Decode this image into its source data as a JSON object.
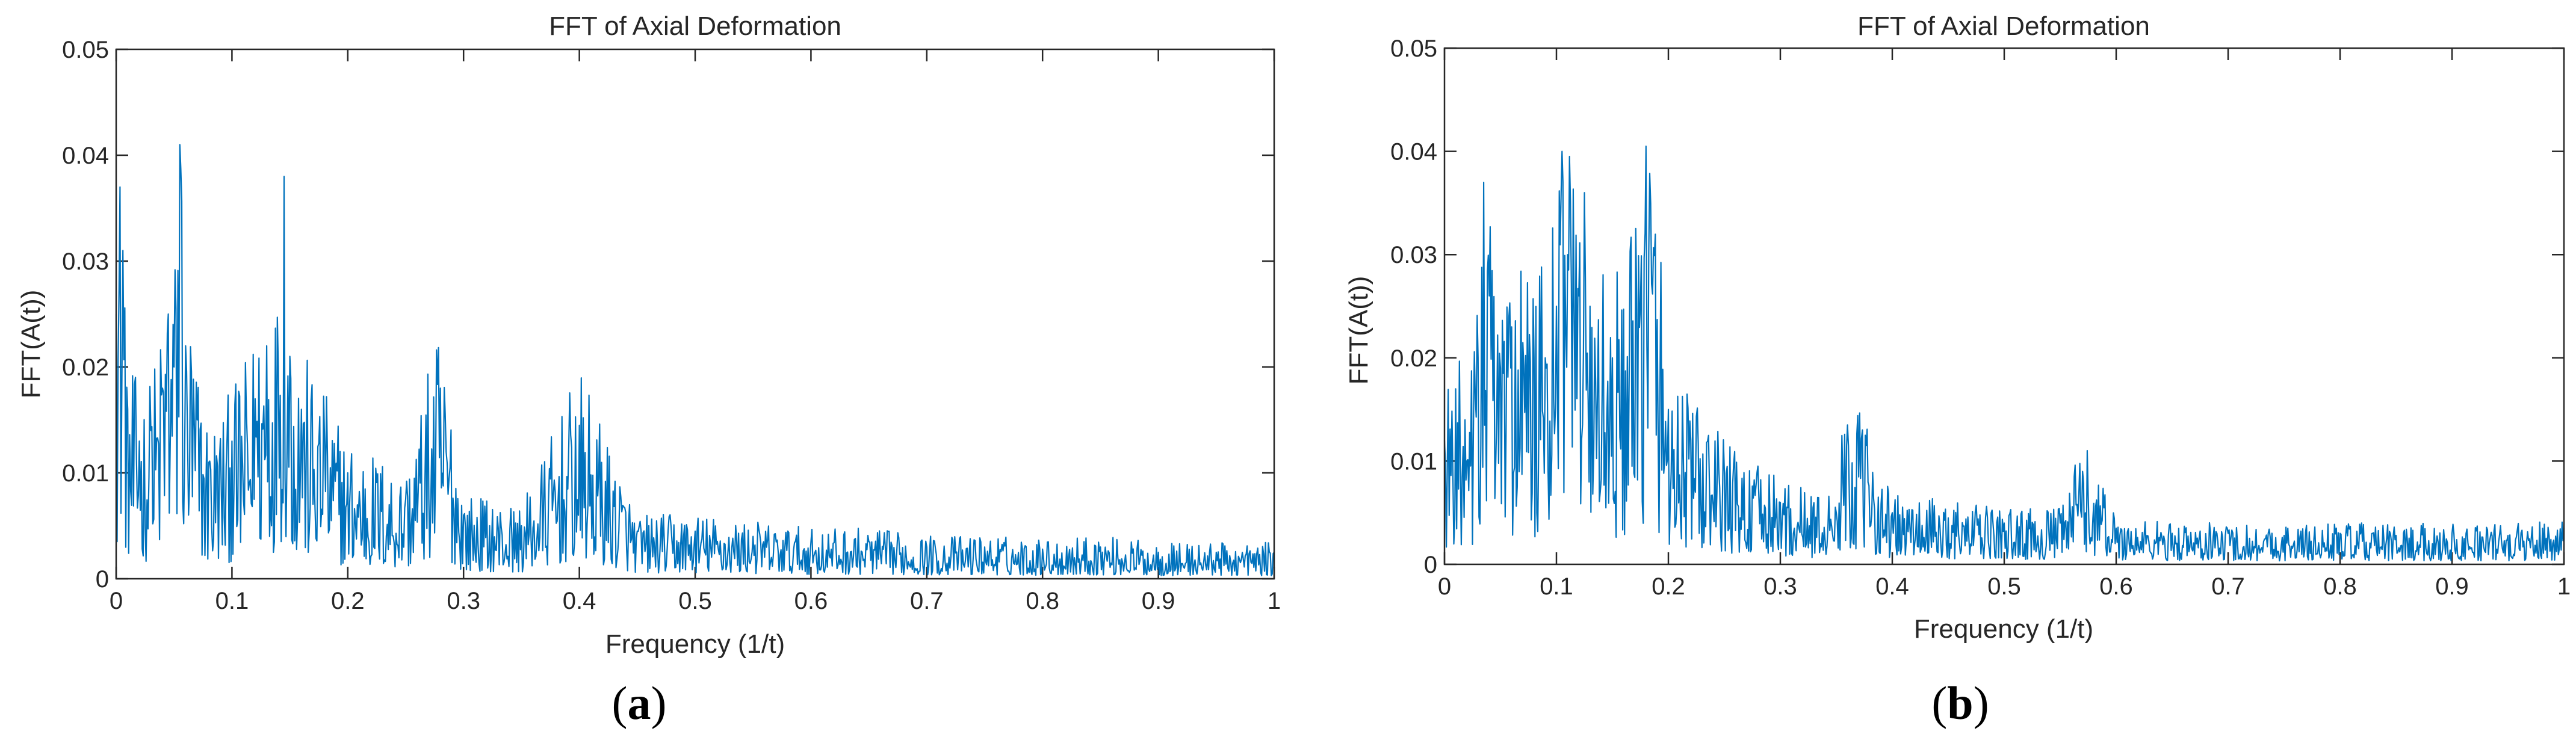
{
  "colors": {
    "series": "#0072BD",
    "axes": "#262626"
  },
  "chart_data": [
    {
      "type": "line",
      "panel": "(a)",
      "panel_letter": "a",
      "title": "FFT of Axial Deformation",
      "xlabel": "Frequency (1/t)",
      "ylabel": "FFT(A(t))",
      "xlim": [
        0,
        1
      ],
      "ylim": [
        0,
        0.05
      ],
      "xticks": [
        0,
        0.1,
        0.2,
        0.3,
        0.4,
        0.5,
        0.6,
        0.7,
        0.8,
        0.9,
        1
      ],
      "xtick_labels": [
        "0",
        "0.1",
        "0.2",
        "0.3",
        "0.4",
        "0.5",
        "0.6",
        "0.7",
        "0.8",
        "0.9",
        "1"
      ],
      "yticks": [
        0,
        0.01,
        0.02,
        0.03,
        0.04,
        0.05
      ],
      "ytick_labels": [
        "0",
        "0.01",
        "0.02",
        "0.03",
        "0.04",
        "0.05"
      ],
      "grid": false,
      "series": [
        {
          "x": [
            0,
            0.003,
            0.006,
            0.01,
            0.02,
            0.03,
            0.04,
            0.045,
            0.05,
            0.055,
            0.06,
            0.07,
            0.08,
            0.1,
            0.12,
            0.13,
            0.14,
            0.145,
            0.15,
            0.16,
            0.18,
            0.2,
            0.25,
            0.28,
            0.3,
            0.35,
            0.4,
            0.45,
            0.5,
            0.55,
            0.6,
            0.65,
            0.7,
            0.75,
            0.8,
            0.85,
            0.9,
            0.95,
            1
          ],
          "y": [
            0.025,
            0.037,
            0.031,
            0.016,
            0.013,
            0.014,
            0.018,
            0.025,
            0.02,
            0.041,
            0.022,
            0.015,
            0.011,
            0.013,
            0.017,
            0.022,
            0.02,
            0.038,
            0.021,
            0.016,
            0.013,
            0.01,
            0.0075,
            0.018,
            0.006,
            0.005,
            0.0145,
            0.0045,
            0.0045,
            0.004,
            0.0035,
            0.0035,
            0.003,
            0.003,
            0.0028,
            0.003,
            0.0025,
            0.0025,
            0.0025
          ]
        }
      ]
    },
    {
      "type": "line",
      "panel": "(b)",
      "panel_letter": "b",
      "title": "FFT of Axial Deformation",
      "xlabel": "Frequency (1/t)",
      "ylabel": "FFT(A(t))",
      "xlim": [
        0,
        1
      ],
      "ylim": [
        0,
        0.05
      ],
      "xticks": [
        0,
        0.1,
        0.2,
        0.3,
        0.4,
        0.5,
        0.6,
        0.7,
        0.8,
        0.9,
        1
      ],
      "xtick_labels": [
        "0",
        "0.1",
        "0.2",
        "0.3",
        "0.4",
        "0.5",
        "0.6",
        "0.7",
        "0.8",
        "0.9",
        "1"
      ],
      "yticks": [
        0,
        0.01,
        0.02,
        0.03,
        0.04,
        0.05
      ],
      "ytick_labels": [
        "0",
        "0.01",
        "0.02",
        "0.03",
        "0.04",
        "0.05"
      ],
      "grid": false,
      "series": [
        {
          "x": [
            0,
            0.01,
            0.02,
            0.03,
            0.035,
            0.04,
            0.05,
            0.06,
            0.08,
            0.1,
            0.105,
            0.11,
            0.12,
            0.125,
            0.13,
            0.15,
            0.175,
            0.18,
            0.2,
            0.22,
            0.25,
            0.3,
            0.35,
            0.36,
            0.4,
            0.45,
            0.5,
            0.55,
            0.57,
            0.6,
            0.65,
            0.7,
            0.75,
            0.8,
            0.85,
            0.9,
            0.95,
            1
          ],
          "y": [
            0.012,
            0.017,
            0.01,
            0.02,
            0.037,
            0.026,
            0.019,
            0.023,
            0.02,
            0.025,
            0.04,
            0.03,
            0.026,
            0.036,
            0.025,
            0.02,
            0.025,
            0.0405,
            0.015,
            0.012,
            0.009,
            0.006,
            0.005,
            0.0135,
            0.005,
            0.0045,
            0.004,
            0.004,
            0.009,
            0.0035,
            0.003,
            0.003,
            0.0028,
            0.003,
            0.0028,
            0.003,
            0.0028,
            0.0035
          ]
        }
      ]
    }
  ]
}
